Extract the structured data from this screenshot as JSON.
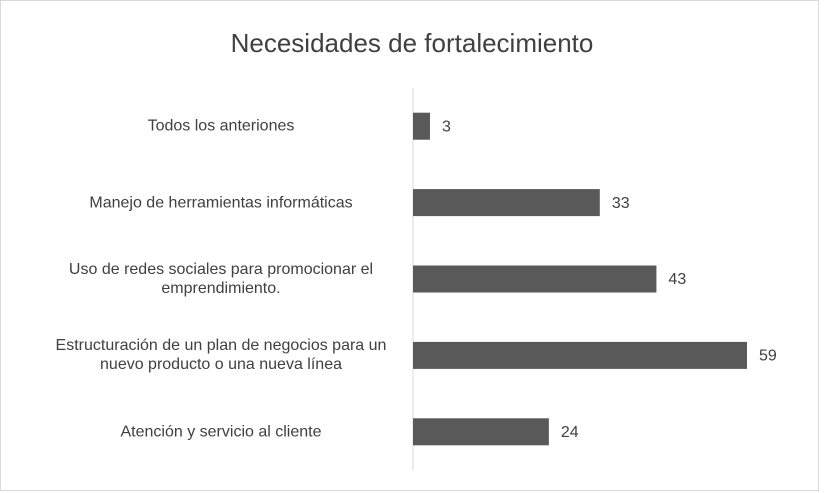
{
  "chart_data": {
    "type": "bar",
    "orientation": "horizontal",
    "title": "Necesidades de fortalecimiento",
    "categories": [
      "Todos los anteriones",
      "Manejo de herramientas informáticas",
      "Uso de redes sociales para promocionar el emprendimiento.",
      "Estructuración de un plan de negocios para un nuevo producto o una nueva línea",
      "Atención y servicio al cliente"
    ],
    "values": [
      3,
      33,
      43,
      59,
      24
    ],
    "color": "#595959"
  }
}
